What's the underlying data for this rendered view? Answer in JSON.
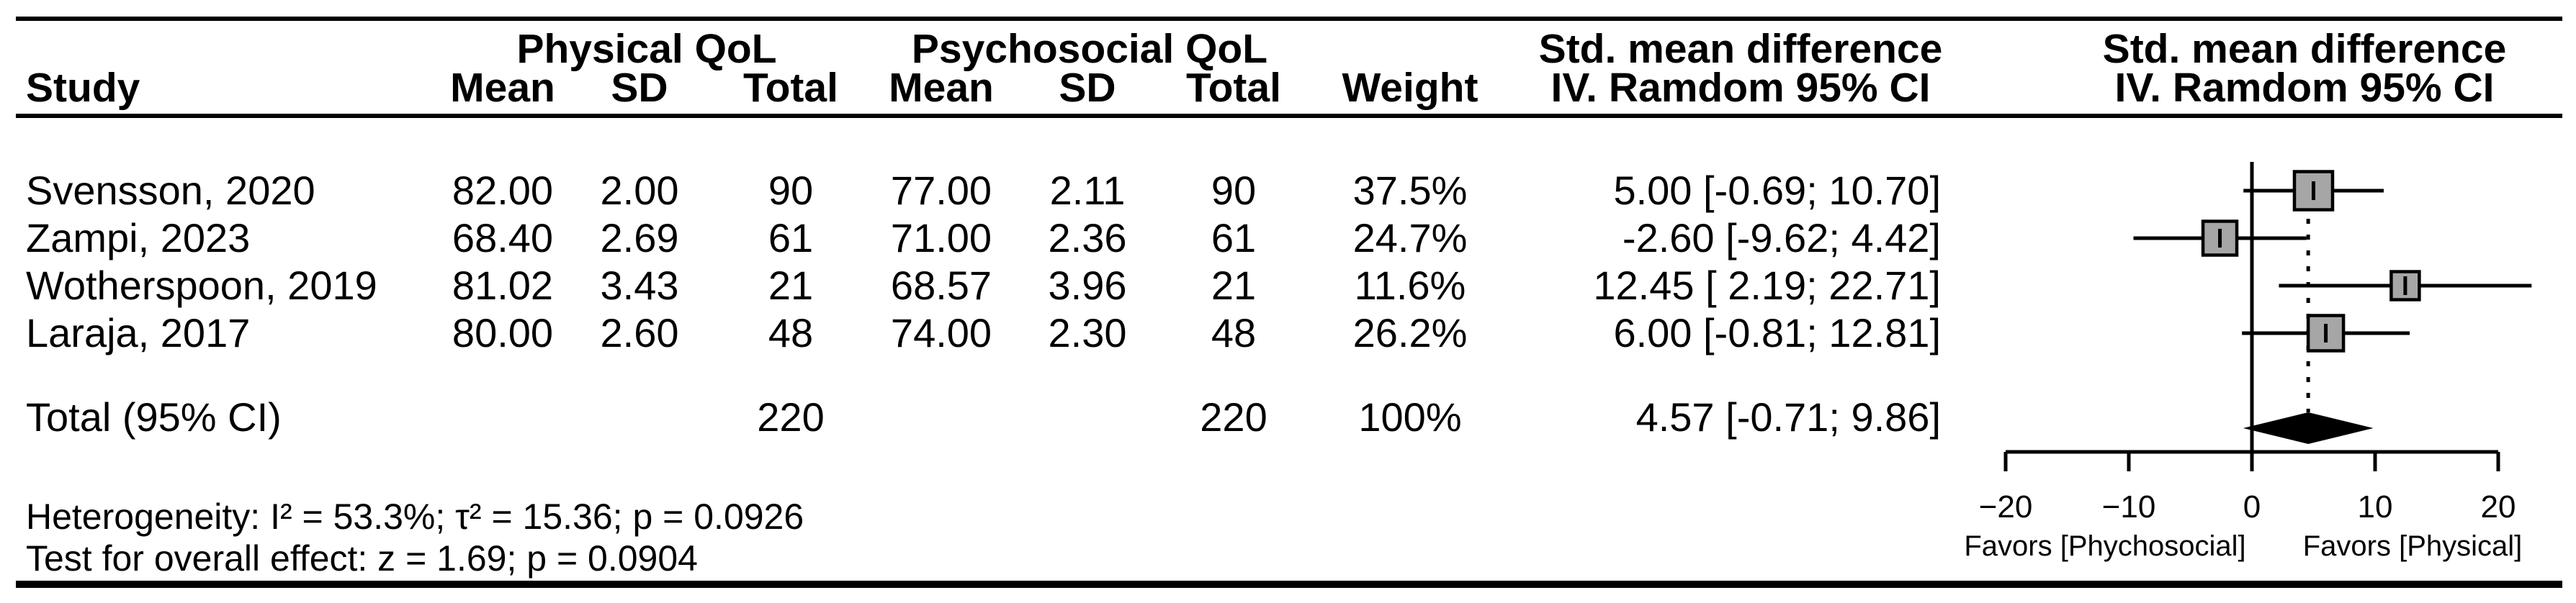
{
  "table": {
    "header": {
      "study": "Study",
      "group_physical": "Physical QoL",
      "group_psychosocial": "Psychosocial QoL",
      "mean": "Mean",
      "sd": "SD",
      "total": "Total",
      "weight": "Weight",
      "smd_line1": "Std. mean difference",
      "smd_line2": "IV. Ramdom 95% CI"
    },
    "rows": [
      {
        "study": "Svensson, 2020",
        "mean1": "82.00",
        "sd1": "2.00",
        "total1": "90",
        "mean2": "77.00",
        "sd2": "2.11",
        "total2": "90",
        "weight": "37.5%",
        "ci": "5.00 [-0.69; 10.70]"
      },
      {
        "study": "Zampi, 2023",
        "mean1": "68.40",
        "sd1": "2.69",
        "total1": "61",
        "mean2": "71.00",
        "sd2": "2.36",
        "total2": "61",
        "weight": "24.7%",
        "ci": "-2.60 [-9.62; 4.42]"
      },
      {
        "study": "Wotherspoon, 2019",
        "mean1": "81.02",
        "sd1": "3.43",
        "total1": "21",
        "mean2": "68.57",
        "sd2": "3.96",
        "total2": "21",
        "weight": "11.6%",
        "ci": "12.45 [ 2.19; 22.71]"
      },
      {
        "study": "Laraja, 2017",
        "mean1": "80.00",
        "sd1": "2.60",
        "total1": "48",
        "mean2": "74.00",
        "sd2": "2.30",
        "total2": "48",
        "weight": "26.2%",
        "ci": "6.00 [-0.81; 12.81]"
      }
    ],
    "total_row": {
      "label": "Total (95% CI)",
      "total1": "220",
      "total2": "220",
      "weight": "100%",
      "ci": "4.57 [-0.71; 9.86]"
    },
    "footnotes": {
      "heterogeneity": "Heterogeneity: I² = 53.3%; τ² = 15.36; p = 0.0926",
      "overall_effect": "Test for overall effect: z = 1.69; p = 0.0904"
    }
  },
  "chart_data": {
    "type": "forest",
    "title": "Std. mean difference IV. Ramdom 95% CI",
    "studies": [
      {
        "name": "Svensson, 2020",
        "estimate": 5.0,
        "ci_low": -0.69,
        "ci_high": 10.7,
        "weight_pct": 37.5
      },
      {
        "name": "Zampi, 2023",
        "estimate": -2.6,
        "ci_low": -9.62,
        "ci_high": 4.42,
        "weight_pct": 24.7
      },
      {
        "name": "Wotherspoon, 2019",
        "estimate": 12.45,
        "ci_low": 2.19,
        "ci_high": 22.71,
        "weight_pct": 11.6
      },
      {
        "name": "Laraja, 2017",
        "estimate": 6.0,
        "ci_low": -0.81,
        "ci_high": 12.81,
        "weight_pct": 26.2
      }
    ],
    "pooled": {
      "label": "Total (95% CI)",
      "estimate": 4.57,
      "ci_low": -0.71,
      "ci_high": 9.86,
      "weight_pct": 100
    },
    "axis": {
      "min": -20,
      "max": 20,
      "ticks": [
        -20,
        -10,
        0,
        10,
        20
      ],
      "zero_reference_line": 0,
      "pooled_dotted_line": 4.57,
      "grid": false
    },
    "labels": {
      "favors_left": "Favors [Phychosocial]",
      "favors_right": "Favors [Physical]"
    },
    "colors": {
      "square_fill": "#a6a6a6",
      "square_border": "#000000",
      "diamond_fill": "#000000",
      "line": "#000000"
    }
  }
}
